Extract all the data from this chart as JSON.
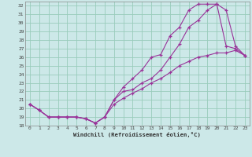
{
  "xlabel": "Windchill (Refroidissement éolien,°C)",
  "bg_color": "#cce8e8",
  "grid_color": "#99ccbb",
  "line_color": "#993399",
  "xlim": [
    -0.5,
    23.5
  ],
  "ylim": [
    18,
    32.5
  ],
  "xticks": [
    0,
    1,
    2,
    3,
    4,
    5,
    6,
    7,
    8,
    9,
    10,
    11,
    12,
    13,
    14,
    15,
    16,
    17,
    18,
    19,
    20,
    21,
    22,
    23
  ],
  "yticks": [
    18,
    19,
    20,
    21,
    22,
    23,
    24,
    25,
    26,
    27,
    28,
    29,
    30,
    31,
    32
  ],
  "line1_x": [
    0,
    1,
    2,
    3,
    4,
    5,
    6,
    7,
    8,
    9,
    10,
    11,
    12,
    13,
    14,
    15,
    16,
    17,
    18,
    19,
    20,
    21,
    22,
    23
  ],
  "line1_y": [
    20.5,
    19.8,
    19.0,
    19.0,
    19.0,
    19.0,
    18.8,
    18.3,
    19.0,
    21.0,
    22.5,
    23.5,
    24.5,
    26.0,
    26.3,
    28.5,
    29.5,
    31.5,
    32.2,
    32.2,
    32.2,
    31.5,
    27.3,
    26.2
  ],
  "line2_x": [
    0,
    1,
    2,
    3,
    4,
    5,
    6,
    7,
    8,
    9,
    10,
    11,
    12,
    13,
    14,
    15,
    16,
    17,
    18,
    19,
    20,
    21,
    22,
    23
  ],
  "line2_y": [
    20.5,
    19.8,
    19.0,
    19.0,
    19.0,
    19.0,
    18.8,
    18.3,
    19.0,
    21.0,
    22.0,
    22.2,
    23.0,
    23.5,
    24.5,
    26.0,
    27.5,
    29.5,
    30.3,
    31.5,
    32.2,
    27.3,
    27.0,
    26.2
  ],
  "line3_x": [
    0,
    1,
    2,
    3,
    4,
    5,
    6,
    7,
    8,
    9,
    10,
    11,
    12,
    13,
    14,
    15,
    16,
    17,
    18,
    19,
    20,
    21,
    22,
    23
  ],
  "line3_y": [
    20.5,
    19.8,
    19.0,
    19.0,
    19.0,
    19.0,
    18.8,
    18.3,
    19.0,
    20.5,
    21.2,
    21.8,
    22.3,
    23.0,
    23.5,
    24.2,
    25.0,
    25.5,
    26.0,
    26.2,
    26.5,
    26.5,
    26.8,
    26.2
  ]
}
